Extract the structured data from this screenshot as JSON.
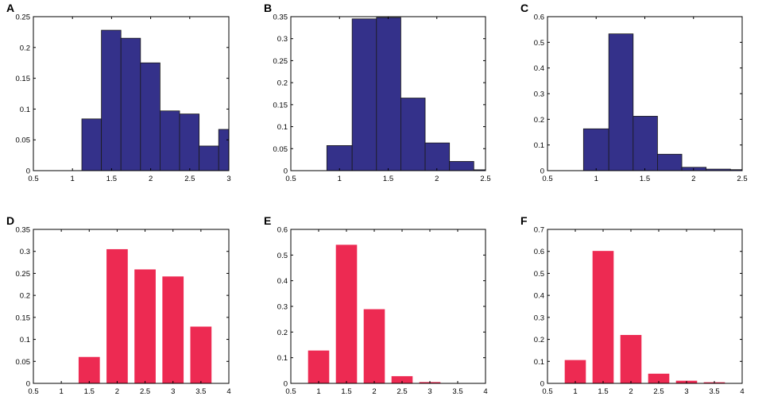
{
  "chart_data": [
    {
      "type": "bar",
      "style": "histogram",
      "panel": "A",
      "color": "#34318a",
      "edge_color": "#1a1a1a",
      "xlim": [
        0.5,
        3
      ],
      "ylim": [
        0,
        0.25
      ],
      "xticks": [
        "0.5",
        "1",
        "1.5",
        "2",
        "2.5",
        "3"
      ],
      "yticks": [
        "0",
        "0.05",
        "0.1",
        "0.15",
        "0.2",
        "0.25"
      ],
      "bin_edges": [
        1.12,
        1.37,
        1.62,
        1.87,
        2.12,
        2.37,
        2.62,
        2.87,
        3.12
      ],
      "values": [
        0.084,
        0.228,
        0.215,
        0.175,
        0.097,
        0.092,
        0.04,
        0.067
      ]
    },
    {
      "type": "bar",
      "style": "histogram",
      "panel": "B",
      "color": "#34318a",
      "edge_color": "#1a1a1a",
      "xlim": [
        0.5,
        2.5
      ],
      "ylim": [
        0,
        0.35
      ],
      "xticks": [
        "0.5",
        "1",
        "1.5",
        "2",
        "2.5"
      ],
      "yticks": [
        "0",
        "0.05",
        "0.1",
        "0.15",
        "0.2",
        "0.25",
        "0.3",
        "0.35"
      ],
      "bin_edges": [
        0.87,
        1.13,
        1.38,
        1.63,
        1.88,
        2.13,
        2.38,
        2.63
      ],
      "values": [
        0.057,
        0.345,
        0.348,
        0.165,
        0.063,
        0.021,
        0.002
      ]
    },
    {
      "type": "bar",
      "style": "histogram",
      "panel": "C",
      "color": "#34318a",
      "edge_color": "#1a1a1a",
      "xlim": [
        0.5,
        2.5
      ],
      "ylim": [
        0,
        0.6
      ],
      "xticks": [
        "0.5",
        "1",
        "1.5",
        "2",
        "2.5"
      ],
      "yticks": [
        "0",
        "0.1",
        "0.2",
        "0.3",
        "0.4",
        "0.5",
        "0.6"
      ],
      "bin_edges": [
        0.87,
        1.13,
        1.38,
        1.63,
        1.88,
        2.13,
        2.38,
        2.63
      ],
      "values": [
        0.163,
        0.533,
        0.212,
        0.064,
        0.013,
        0.006,
        0.004
      ]
    },
    {
      "type": "bar",
      "panel": "D",
      "color": "#ed2a52",
      "bar_width": 0.38,
      "xlim": [
        0.5,
        4
      ],
      "ylim": [
        0,
        0.35
      ],
      "xticks": [
        "0.5",
        "1",
        "1.5",
        "2",
        "2.5",
        "3",
        "3.5",
        "4"
      ],
      "yticks": [
        "0",
        "0.05",
        "0.1",
        "0.15",
        "0.2",
        "0.25",
        "0.3",
        "0.35"
      ],
      "x": [
        1.5,
        2,
        2.5,
        3,
        3.5
      ],
      "values": [
        0.06,
        0.305,
        0.259,
        0.243,
        0.129
      ]
    },
    {
      "type": "bar",
      "panel": "E",
      "color": "#ed2a52",
      "bar_width": 0.38,
      "xlim": [
        0.5,
        4
      ],
      "ylim": [
        0,
        0.6
      ],
      "xticks": [
        "0.5",
        "1",
        "1.5",
        "2",
        "2.5",
        "3",
        "3.5",
        "4"
      ],
      "yticks": [
        "0",
        "0.1",
        "0.2",
        "0.3",
        "0.4",
        "0.5",
        "0.6"
      ],
      "x": [
        1,
        1.5,
        2,
        2.5,
        3
      ],
      "values": [
        0.128,
        0.54,
        0.289,
        0.028,
        0.005
      ]
    },
    {
      "type": "bar",
      "panel": "F",
      "color": "#ed2a52",
      "bar_width": 0.38,
      "xlim": [
        0.5,
        4
      ],
      "ylim": [
        0,
        0.7
      ],
      "xticks": [
        "0.5",
        "1",
        "1.5",
        "2",
        "2.5",
        "3",
        "3.5",
        "4"
      ],
      "yticks": [
        "0",
        "0.1",
        "0.2",
        "0.3",
        "0.4",
        "0.5",
        "0.6",
        "0.7"
      ],
      "x": [
        1,
        1.5,
        2,
        2.5,
        3,
        3.5
      ],
      "values": [
        0.106,
        0.602,
        0.22,
        0.044,
        0.012,
        0.005
      ]
    }
  ]
}
